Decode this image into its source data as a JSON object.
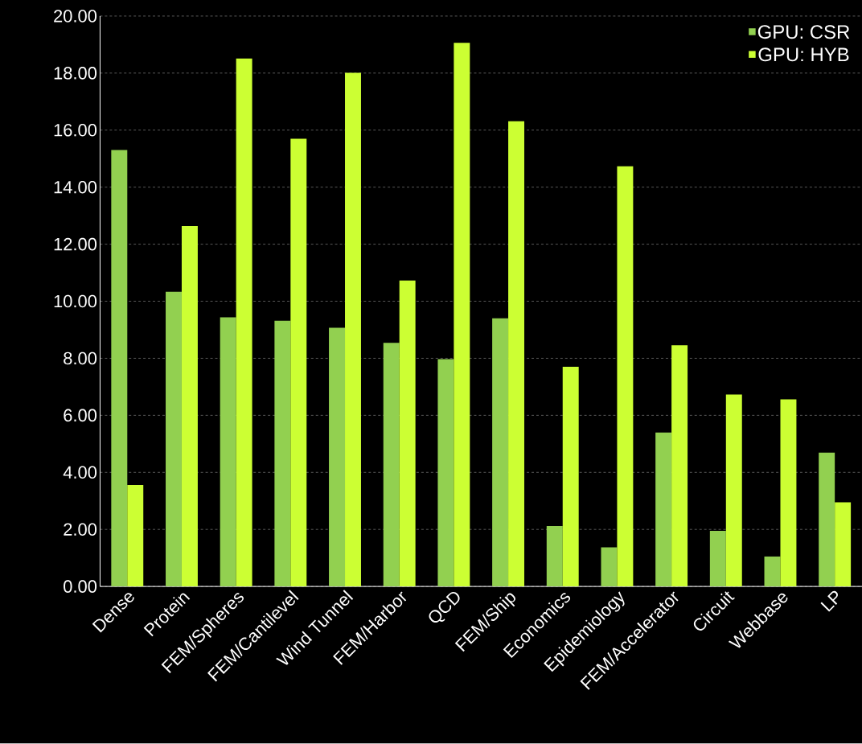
{
  "chart_data": {
    "type": "bar",
    "categories": [
      "Dense",
      "Protein",
      "FEM/Spheres",
      "FEM/Cantilevel",
      "Wind Tunnel",
      "FEM/Harbor",
      "QCD",
      "FEM/Ship",
      "Economics",
      "Epidemiology",
      "FEM/Accelerator",
      "Circuit",
      "Webbase",
      "LP"
    ],
    "series": [
      {
        "name": "GPU: CSR",
        "color": "#92d050",
        "values": [
          15.3,
          10.33,
          9.44,
          9.32,
          9.07,
          8.54,
          7.97,
          9.4,
          2.12,
          1.37,
          5.4,
          1.95,
          1.05,
          4.69
        ]
      },
      {
        "name": "GPU: HYB",
        "color": "#ccff33",
        "values": [
          3.56,
          12.64,
          18.51,
          15.7,
          18.01,
          10.73,
          19.06,
          16.31,
          7.7,
          14.73,
          8.46,
          6.73,
          6.56,
          2.95
        ]
      }
    ],
    "ylim": [
      0,
      20
    ],
    "yticks": [
      {
        "value": 0,
        "label": "0.00"
      },
      {
        "value": 2,
        "label": "2.00"
      },
      {
        "value": 4,
        "label": "4.00"
      },
      {
        "value": 6,
        "label": "6.00"
      },
      {
        "value": 8,
        "label": "8.00"
      },
      {
        "value": 10,
        "label": "10.00"
      },
      {
        "value": 12,
        "label": "12.00"
      },
      {
        "value": 14,
        "label": "14.00"
      },
      {
        "value": 16,
        "label": "16.00"
      },
      {
        "value": 18,
        "label": "18.00"
      },
      {
        "value": 20,
        "label": "20.00"
      }
    ],
    "grid": "y",
    "legend": "top right"
  }
}
